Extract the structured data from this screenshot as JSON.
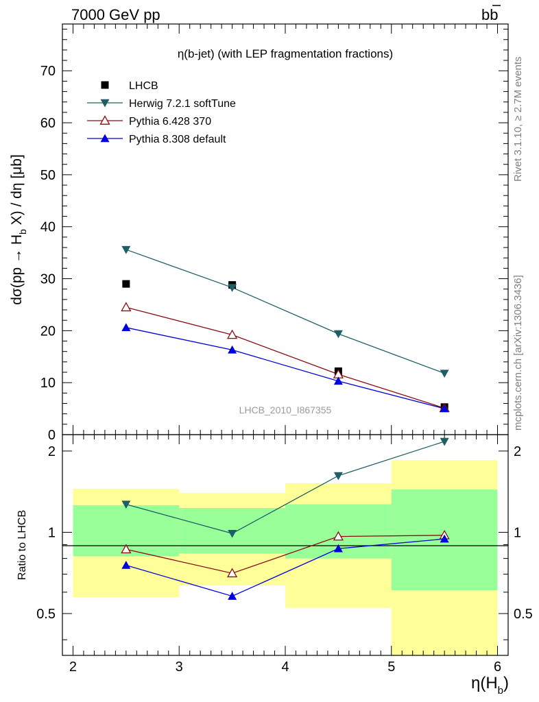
{
  "header": {
    "left": "7000 GeV pp",
    "right": "b",
    "right_bar": "b"
  },
  "side_labels": {
    "rivet": "Rivet 3.1.10, ≥ 2.7M events",
    "mcplots": "mcplots.cern.ch [arXiv:1306.3436]"
  },
  "watermark": "LHCB_2010_I867355",
  "colors": {
    "data": "#000000",
    "herwig": "#1d5f65",
    "pythia6": "#8b0a10",
    "pythia8": "#0000dd",
    "band_inner": "#99ff99",
    "band_outer": "#ffff99"
  },
  "chart_data": [
    {
      "type": "scatter",
      "title": "η(b-jet) (with LEP fragmentation fractions)",
      "ylabel_parts": {
        "pre": "dσ(pp → H",
        "sub": "b",
        "post": " X) / dη [μb]"
      },
      "xlim": [
        1.9,
        6.1
      ],
      "ylim": [
        0,
        79
      ],
      "y_ticks": [
        0,
        10,
        20,
        30,
        40,
        50,
        60,
        70
      ],
      "y_tick_labels": [
        "0",
        "10",
        "20",
        "30",
        "40",
        "50",
        "60",
        "70"
      ],
      "legend_position": "top-left",
      "x": [
        2.5,
        3.5,
        4.5,
        5.5
      ],
      "series": [
        {
          "name": "LHCB",
          "marker": "square",
          "values": [
            29.0,
            28.8,
            12.2,
            5.3
          ]
        },
        {
          "name": "Herwig 7.2.1 softTune",
          "marker": "triangle-down",
          "values": [
            35.6,
            28.3,
            19.4,
            11.8
          ]
        },
        {
          "name": "Pythia 6.428 370",
          "marker": "triangle-up-open",
          "values": [
            24.5,
            19.2,
            11.6,
            5.1
          ]
        },
        {
          "name": "Pythia 8.308 default",
          "marker": "triangle-up",
          "values": [
            20.6,
            16.3,
            10.3,
            5.0
          ]
        }
      ]
    },
    {
      "type": "line",
      "ylabel": "Ratio to LHCB",
      "xlabel_parts": {
        "pre": "η(H",
        "sub": "b",
        "post": ")"
      },
      "xlim": [
        1.9,
        6.1
      ],
      "ylim": [
        0.35,
        2.3
      ],
      "log_y": true,
      "x_ticks": [
        2,
        3,
        4,
        5,
        6
      ],
      "x_tick_labels": [
        "2",
        "3",
        "4",
        "5",
        "6"
      ],
      "y_ticks": [
        0.5,
        1,
        2
      ],
      "y_tick_labels": [
        "0.5",
        "1",
        "2"
      ],
      "bins": [
        [
          2,
          3
        ],
        [
          3,
          4
        ],
        [
          4,
          5
        ],
        [
          5,
          6
        ]
      ],
      "band_outer": [
        [
          0.575,
          1.45
        ],
        [
          0.635,
          1.4
        ],
        [
          0.525,
          1.52
        ],
        [
          0.345,
          1.85
        ]
      ],
      "band_inner": [
        [
          0.815,
          1.26
        ],
        [
          0.835,
          1.23
        ],
        [
          0.8,
          1.27
        ],
        [
          0.61,
          1.44
        ]
      ],
      "x": [
        2.5,
        3.5,
        4.5,
        5.5
      ],
      "series": [
        {
          "name": "Herwig 7.2.1 softTune",
          "values": [
            1.27,
            0.99,
            1.62,
            2.17
          ]
        },
        {
          "name": "Pythia 6.428 370",
          "values": [
            0.865,
            0.705,
            0.965,
            0.975
          ]
        },
        {
          "name": "Pythia 8.308 default",
          "values": [
            0.755,
            0.58,
            0.87,
            0.945
          ]
        }
      ]
    }
  ]
}
